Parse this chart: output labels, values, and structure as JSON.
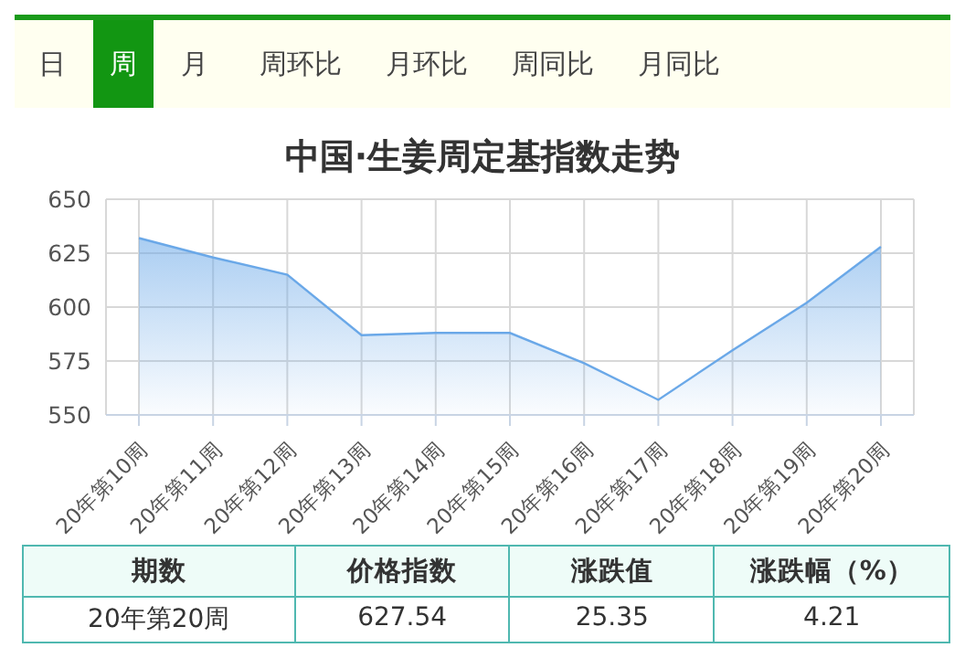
{
  "chart_data": {
    "type": "area",
    "title": "中国·生姜周定基指数走势",
    "categories": [
      "20年第10周",
      "20年第11周",
      "20年第12周",
      "20年第13周",
      "20年第14周",
      "20年第15周",
      "20年第16周",
      "20年第17周",
      "20年第18周",
      "20年第19周",
      "20年第20周"
    ],
    "series": [
      {
        "color": "#6aa8e8",
        "values": [
          632,
          623,
          615,
          587,
          588,
          588,
          574,
          557,
          580,
          602,
          628
        ]
      }
    ],
    "ylim": [
      550,
      650
    ],
    "yticks": [
      550,
      575,
      600,
      625,
      650
    ],
    "grid": true,
    "legend": false,
    "annotations": [
      "日",
      "周",
      "月",
      "周环比",
      "月环比",
      "周同比",
      "月同比",
      "期数",
      "价格指数",
      "涨跌值",
      "涨跌幅（%）",
      "20年第20周",
      "627.54",
      "25.35",
      "4.21"
    ]
  }
}
